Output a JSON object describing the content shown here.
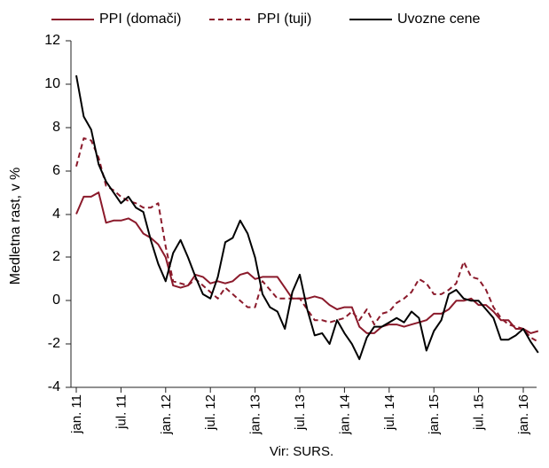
{
  "chart_data": {
    "type": "line",
    "ylabel": "Medletna rast, v %",
    "source_note": "Vir: SURS.",
    "ylim": [
      -4,
      12
    ],
    "yticks": [
      "12",
      "10",
      "8",
      "6",
      "4",
      "2",
      "0",
      "-2",
      "-4"
    ],
    "xticks": [
      "jan. 11",
      "jul. 11",
      "jan. 12",
      "jul. 12",
      "jan. 13",
      "jul. 13",
      "jan. 14",
      "jul. 14",
      "jan. 15",
      "jul. 15",
      "jan. 16"
    ],
    "x_start": "jan. 11",
    "x_frequency": "monthly",
    "legend_position": "top",
    "grid": false,
    "series": [
      {
        "name": "PPI (domači)",
        "color": "#8b1a2b",
        "style": "solid",
        "values": [
          4.0,
          4.8,
          4.8,
          5.0,
          3.6,
          3.7,
          3.7,
          3.8,
          3.6,
          3.1,
          2.9,
          2.6,
          2.0,
          0.7,
          0.6,
          0.7,
          1.2,
          1.1,
          0.8,
          0.9,
          0.8,
          0.9,
          1.2,
          1.3,
          1.0,
          1.1,
          1.1,
          1.1,
          0.6,
          0.1,
          0.1,
          0.1,
          0.2,
          0.1,
          -0.2,
          -0.4,
          -0.3,
          -0.3,
          -1.2,
          -1.5,
          -1.5,
          -1.2,
          -1.1,
          -1.1,
          -1.2,
          -1.1,
          -1.0,
          -0.9,
          -0.6,
          -0.6,
          -0.4,
          0.0,
          0.0,
          0.1,
          -0.2,
          -0.2,
          -0.5,
          -0.9,
          -0.9,
          -1.3,
          -1.3,
          -1.5,
          -1.4
        ]
      },
      {
        "name": "PPI (tuji)",
        "color": "#8b1a2b",
        "style": "dashed",
        "values": [
          6.2,
          7.5,
          7.4,
          6.6,
          5.3,
          5.1,
          4.8,
          4.6,
          4.5,
          4.3,
          4.3,
          4.5,
          2.5,
          0.9,
          0.8,
          0.7,
          1.0,
          0.7,
          0.4,
          0.1,
          0.6,
          0.3,
          0.0,
          -0.3,
          -0.3,
          0.9,
          0.5,
          0.1,
          0.1,
          0.1,
          0.1,
          -0.4,
          -0.9,
          -0.9,
          -1.0,
          -0.9,
          -0.8,
          -0.5,
          -0.9,
          -0.4,
          -1.1,
          -0.6,
          -0.5,
          -0.1,
          0.1,
          0.4,
          1.0,
          0.8,
          0.3,
          0.3,
          0.5,
          0.8,
          1.8,
          1.1,
          1.0,
          0.5,
          -0.3,
          -0.8,
          -1.1,
          -1.2,
          -1.3,
          -1.7,
          -1.9
        ]
      },
      {
        "name": "Uvozne cene",
        "color": "#000000",
        "style": "solid",
        "values": [
          10.4,
          8.5,
          7.9,
          6.3,
          5.5,
          5.0,
          4.5,
          4.8,
          4.3,
          4.1,
          2.8,
          1.7,
          0.9,
          2.2,
          2.8,
          2.0,
          1.1,
          0.3,
          0.1,
          1.1,
          2.7,
          2.9,
          3.7,
          3.1,
          2.0,
          0.3,
          -0.3,
          -0.5,
          -1.3,
          0.4,
          1.2,
          -0.4,
          -1.6,
          -1.5,
          -2.0,
          -0.9,
          -1.5,
          -2.0,
          -2.7,
          -1.7,
          -1.2,
          -1.2,
          -1.0,
          -0.8,
          -1.0,
          -0.5,
          -0.8,
          -2.3,
          -1.4,
          -0.9,
          0.3,
          0.5,
          0.1,
          0.0,
          0.0,
          -0.4,
          -0.8,
          -1.8,
          -1.8,
          -1.6,
          -1.3,
          -1.9,
          -2.4
        ]
      }
    ]
  }
}
